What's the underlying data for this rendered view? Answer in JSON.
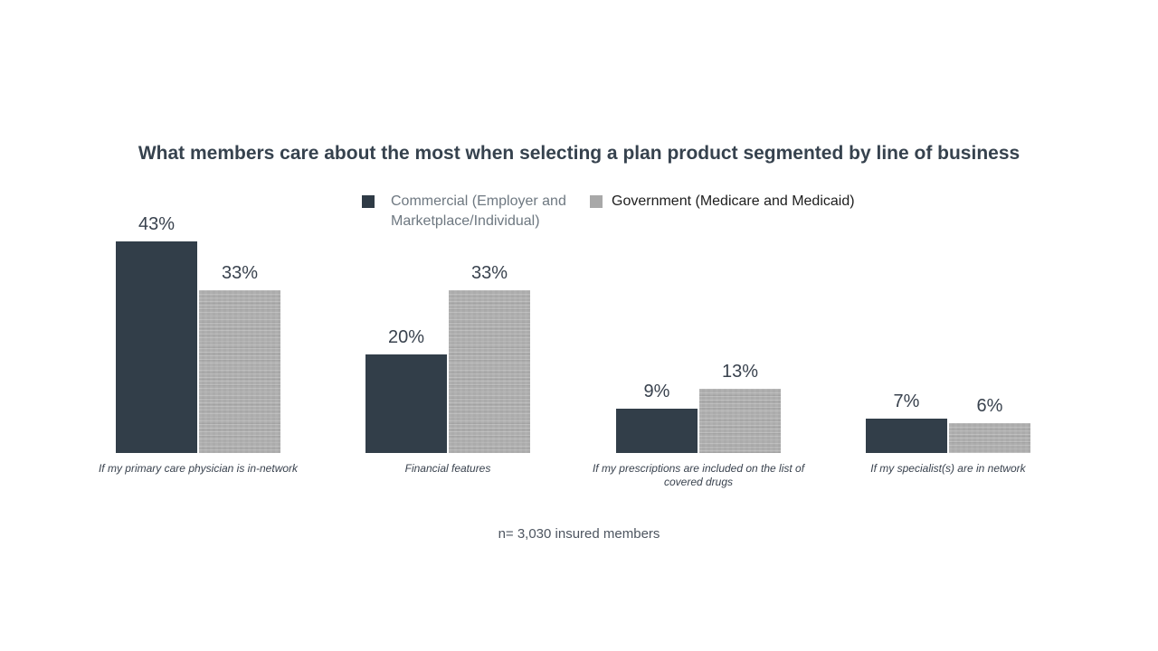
{
  "title": "What members care about the most when selecting a plan product segmented by line of business",
  "legend": [
    {
      "label": "Commercial (Employer and Marketplace/Individual)",
      "color": "#2f3b46"
    },
    {
      "label": "Government (Medicare and Medicaid)",
      "color": "#a8a8a8"
    }
  ],
  "footnote": "n= 3,030 insured members",
  "chart_data": {
    "type": "bar",
    "title": "What members care about the most when selecting a plan product segmented by line of business",
    "categories": [
      "If my primary care physician is in-network",
      "Financial features",
      "If my prescriptions are included on the list of covered drugs",
      "If my specialist(s) are in network"
    ],
    "series": [
      {
        "name": "Commercial (Employer and Marketplace/Individual)",
        "color": "#323e49",
        "values": [
          43,
          20,
          9,
          7
        ]
      },
      {
        "name": "Government (Medicare and Medicaid)",
        "color": "#ababab",
        "values": [
          33,
          33,
          13,
          6
        ]
      }
    ],
    "value_suffix": "%",
    "data_labels": true,
    "xlabel": "",
    "ylabel": "",
    "ylim": [
      0,
      50
    ],
    "axes_hidden": true,
    "grid": false,
    "legend_position": "top-center",
    "note": "n= 3,030 insured members"
  }
}
